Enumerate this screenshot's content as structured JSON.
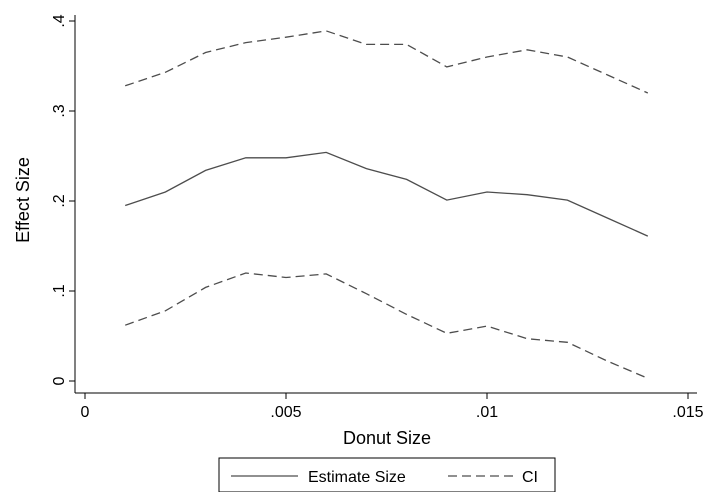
{
  "chart_data": {
    "type": "line",
    "xlabel": "Donut Size",
    "ylabel": "Effect Size",
    "xlim": [
      0,
      0.015
    ],
    "ylim": [
      0,
      0.4
    ],
    "xticks": [
      {
        "value": 0,
        "label": "0"
      },
      {
        "value": 0.005,
        "label": ".005"
      },
      {
        "value": 0.01,
        "label": ".01"
      },
      {
        "value": 0.015,
        "label": ".015"
      }
    ],
    "yticks": [
      {
        "value": 0,
        "label": "0"
      },
      {
        "value": 0.1,
        "label": ".1"
      },
      {
        "value": 0.2,
        "label": ".2"
      },
      {
        "value": 0.3,
        "label": ".3"
      },
      {
        "value": 0.4,
        "label": ".4"
      }
    ],
    "grid": false,
    "legend_position": "bottom",
    "x": [
      0.001,
      0.002,
      0.003,
      0.004,
      0.005,
      0.006,
      0.007,
      0.008,
      0.009,
      0.01,
      0.011,
      0.012,
      0.013,
      0.014
    ],
    "series": [
      {
        "name": "Estimate Size",
        "style": "solid",
        "values": [
          0.195,
          0.21,
          0.234,
          0.248,
          0.248,
          0.254,
          0.236,
          0.224,
          0.201,
          0.21,
          0.207,
          0.201,
          0.181,
          0.161
        ]
      },
      {
        "name": "CI",
        "style": "dashed",
        "values": [
          0.328,
          0.343,
          0.365,
          0.376,
          0.382,
          0.389,
          0.374,
          0.374,
          0.349,
          0.36,
          0.368,
          0.36,
          0.34,
          0.32
        ]
      },
      {
        "name": "",
        "style": "dashed",
        "values": [
          0.062,
          0.078,
          0.104,
          0.12,
          0.115,
          0.119,
          0.097,
          0.074,
          0.053,
          0.061,
          0.047,
          0.043,
          0.022,
          0.003
        ]
      }
    ],
    "legend": [
      {
        "label": "Estimate Size",
        "style": "solid"
      },
      {
        "label": "CI",
        "style": "dashed"
      }
    ],
    "colors": {
      "line": "#4d4d4d",
      "axis": "#000000"
    }
  }
}
